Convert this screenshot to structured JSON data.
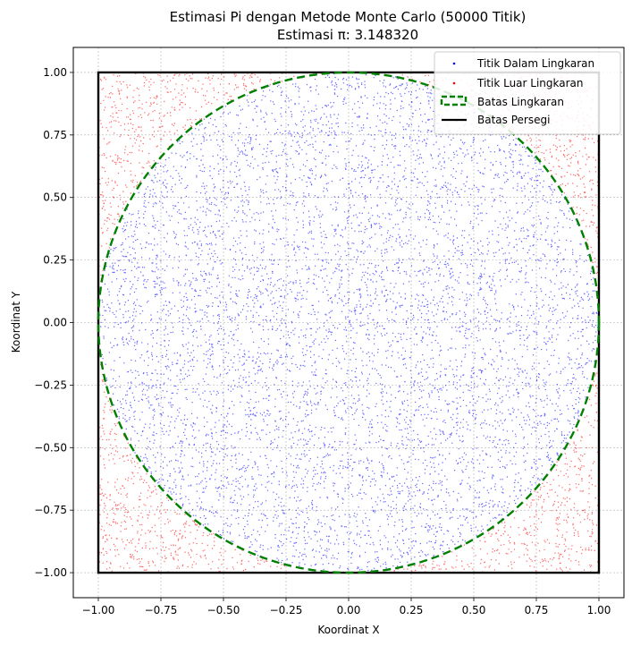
{
  "chart_data": {
    "type": "scatter",
    "title": "Estimasi Pi dengan Metode Monte Carlo (50000 Titik)",
    "subtitle": "Estimasi π: 3.148320",
    "xlabel": "Koordinat X",
    "ylabel": "Koordinat Y",
    "xlim": [
      -1.1,
      1.1
    ],
    "ylim": [
      -1.1,
      1.1
    ],
    "x_ticks": [
      "−1.00",
      "−0.75",
      "−0.50",
      "−0.25",
      "0.00",
      "0.25",
      "0.50",
      "0.75",
      "1.00"
    ],
    "y_ticks": [
      "−1.00",
      "−0.75",
      "−0.50",
      "−0.25",
      "0.00",
      "0.25",
      "0.50",
      "0.75",
      "1.00"
    ],
    "x_tick_values": [
      -1,
      -0.75,
      -0.5,
      -0.25,
      0,
      0.25,
      0.5,
      0.75,
      1
    ],
    "y_tick_values": [
      -1,
      -0.75,
      -0.5,
      -0.25,
      0,
      0.25,
      0.5,
      0.75,
      1
    ],
    "grid": true,
    "legend_position": "top-right",
    "total_points": 50000,
    "pi_estimate": 3.14832,
    "series": [
      {
        "name": "Titik Dalam Lingkaran",
        "kind": "scatter",
        "color": "#0000ff",
        "region": "inside unit circle"
      },
      {
        "name": "Titik Luar Lingkaran",
        "kind": "scatter",
        "color": "#ff0000",
        "region": "outside unit circle, inside square"
      },
      {
        "name": "Batas Lingkaran",
        "kind": "circle",
        "color": "#008000",
        "center": [
          0,
          0
        ],
        "radius": 1,
        "style": "dashed"
      },
      {
        "name": "Batas Persegi",
        "kind": "square",
        "color": "#000000",
        "corners": [
          [
            -1,
            -1
          ],
          [
            1,
            -1
          ],
          [
            1,
            1
          ],
          [
            -1,
            1
          ]
        ],
        "style": "solid"
      }
    ]
  }
}
